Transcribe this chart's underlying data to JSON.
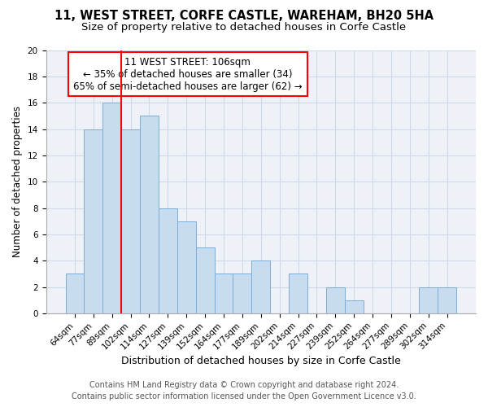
{
  "title": "11, WEST STREET, CORFE CASTLE, WAREHAM, BH20 5HA",
  "subtitle": "Size of property relative to detached houses in Corfe Castle",
  "xlabel": "Distribution of detached houses by size in Corfe Castle",
  "ylabel": "Number of detached properties",
  "categories": [
    "64sqm",
    "77sqm",
    "89sqm",
    "102sqm",
    "114sqm",
    "127sqm",
    "139sqm",
    "152sqm",
    "164sqm",
    "177sqm",
    "189sqm",
    "202sqm",
    "214sqm",
    "227sqm",
    "239sqm",
    "252sqm",
    "264sqm",
    "277sqm",
    "289sqm",
    "302sqm",
    "314sqm"
  ],
  "values": [
    3,
    14,
    16,
    14,
    15,
    8,
    7,
    5,
    3,
    3,
    4,
    0,
    3,
    0,
    2,
    1,
    0,
    0,
    0,
    2,
    2
  ],
  "bar_color": "#c8dcf0",
  "bar_edge_color": "#7badd4",
  "vline_color": "red",
  "vline_position": 2.5,
  "annotation_line1": "11 WEST STREET: 106sqm",
  "annotation_line2": "← 35% of detached houses are smaller (34)",
  "annotation_line3": "65% of semi-detached houses are larger (62) →",
  "ylim_min": 0,
  "ylim_max": 20,
  "yticks": [
    0,
    2,
    4,
    6,
    8,
    10,
    12,
    14,
    16,
    18,
    20
  ],
  "grid_color": "#d0d8e8",
  "background_color": "#eef2f8",
  "footer_line1": "Contains HM Land Registry data © Crown copyright and database right 2024.",
  "footer_line2": "Contains public sector information licensed under the Open Government Licence v3.0.",
  "title_fontsize": 10.5,
  "subtitle_fontsize": 9.5,
  "xlabel_fontsize": 9,
  "ylabel_fontsize": 8.5,
  "tick_fontsize": 7.5,
  "annot_fontsize": 8.5,
  "footer_fontsize": 7
}
